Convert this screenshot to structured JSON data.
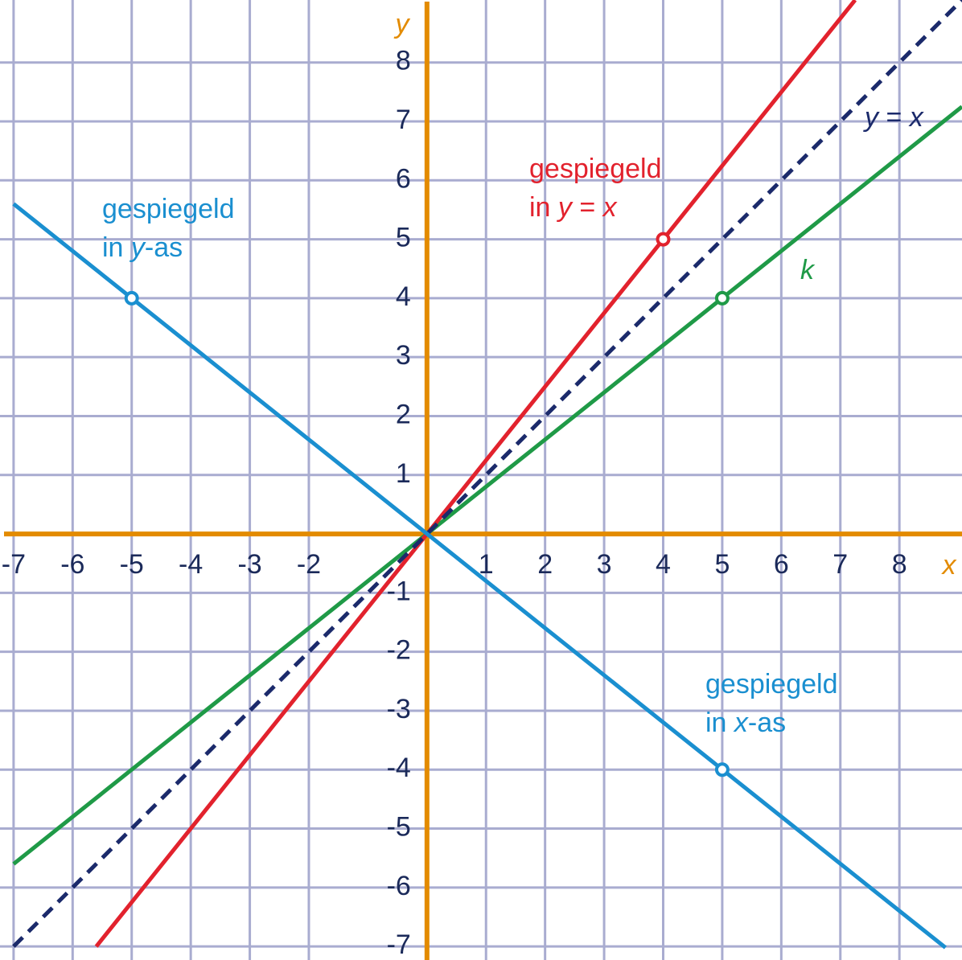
{
  "chart_data": {
    "type": "line",
    "xlim": [
      -7.23,
      9.06
    ],
    "ylim": [
      -7.23,
      9.06
    ],
    "xticks": [
      -7,
      -6,
      -5,
      -4,
      -3,
      -2,
      1,
      2,
      3,
      4,
      5,
      6,
      7,
      8
    ],
    "yticks": [
      -7,
      -6,
      -5,
      -4,
      -3,
      -2,
      -1,
      1,
      2,
      3,
      4,
      5,
      6,
      7,
      8
    ],
    "grid": true,
    "grid_color": "#a9acd0",
    "axis_color": "#e38b00",
    "tick_color": "#1b2a5a",
    "xlabel": "x",
    "ylabel": "y",
    "series": [
      {
        "name": "k",
        "color": "#1f9a47",
        "dashed": false,
        "x": [
          -7,
          9.06
        ],
        "values": [
          -5.6,
          7.25
        ]
      },
      {
        "name": "gespiegeld in y = x",
        "color": "#e2222d",
        "dashed": false,
        "x": [
          -5.6,
          7.25
        ],
        "values": [
          -7,
          9.06
        ]
      },
      {
        "name": "y = x",
        "color": "#1b2a6b",
        "dashed": true,
        "x": [
          -7,
          9.06
        ],
        "values": [
          -7,
          9.06
        ]
      },
      {
        "name": "gespiegeld in y-as / x-as",
        "color": "#1a8fd0",
        "dashed": false,
        "x": [
          -7,
          8.78
        ],
        "values": [
          5.6,
          -7.02
        ]
      }
    ],
    "points": [
      {
        "x": -5,
        "y": 4,
        "color": "#1a8fd0"
      },
      {
        "x": 4,
        "y": 5,
        "color": "#e2222d"
      },
      {
        "x": 5,
        "y": 4,
        "color": "#1f9a47"
      },
      {
        "x": 5,
        "y": -4,
        "color": "#1a8fd0"
      }
    ],
    "annotations": [
      {
        "color": "#1b2a6b",
        "lines": [
          [
            {
              "text": "y",
              "italic": true
            },
            {
              "text": " = ",
              "italic": false
            },
            {
              "text": "x",
              "italic": true
            }
          ]
        ]
      },
      {
        "color": "#1f9a47",
        "lines": [
          [
            {
              "text": "k",
              "italic": true
            }
          ]
        ]
      },
      {
        "color": "#e2222d",
        "lines": [
          [
            {
              "text": "gespiegeld",
              "italic": false
            }
          ],
          [
            {
              "text": "in ",
              "italic": false
            },
            {
              "text": "y",
              "italic": true
            },
            {
              "text": " = ",
              "italic": false
            },
            {
              "text": "x",
              "italic": true
            }
          ]
        ]
      },
      {
        "color": "#1a8fd0",
        "lines": [
          [
            {
              "text": "gespiegeld",
              "italic": false
            }
          ],
          [
            {
              "text": "in ",
              "italic": false
            },
            {
              "text": "y",
              "italic": true
            },
            {
              "text": "-as",
              "italic": false
            }
          ]
        ]
      },
      {
        "color": "#1a8fd0",
        "lines": [
          [
            {
              "text": "gespiegeld",
              "italic": false
            }
          ],
          [
            {
              "text": "in ",
              "italic": false
            },
            {
              "text": "x",
              "italic": true
            },
            {
              "text": "-as",
              "italic": false
            }
          ]
        ]
      }
    ]
  }
}
